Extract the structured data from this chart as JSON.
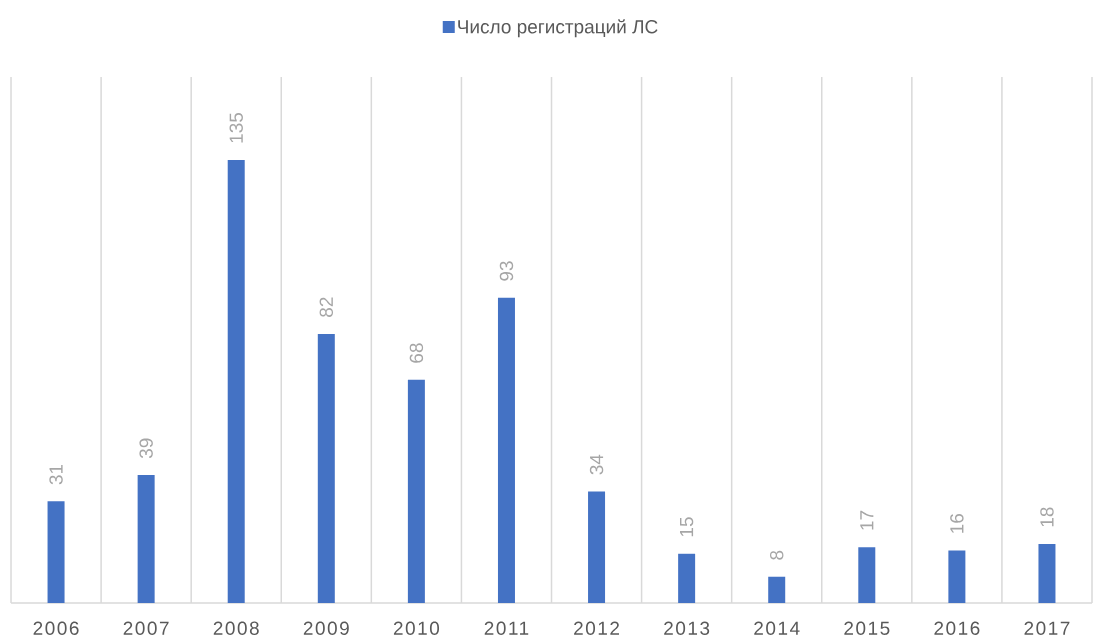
{
  "chart_data": {
    "type": "bar",
    "categories": [
      "2006",
      "2007",
      "2008",
      "2009",
      "2010",
      "2011",
      "2012",
      "2013",
      "2014",
      "2015",
      "2016",
      "2017"
    ],
    "series": [
      {
        "name": "Число регистраций ЛС",
        "color": "#4472c4",
        "values": [
          31,
          39,
          135,
          82,
          68,
          93,
          34,
          15,
          8,
          17,
          16,
          18
        ]
      }
    ],
    "data_labels": true,
    "grid": "x",
    "legend": "top"
  }
}
